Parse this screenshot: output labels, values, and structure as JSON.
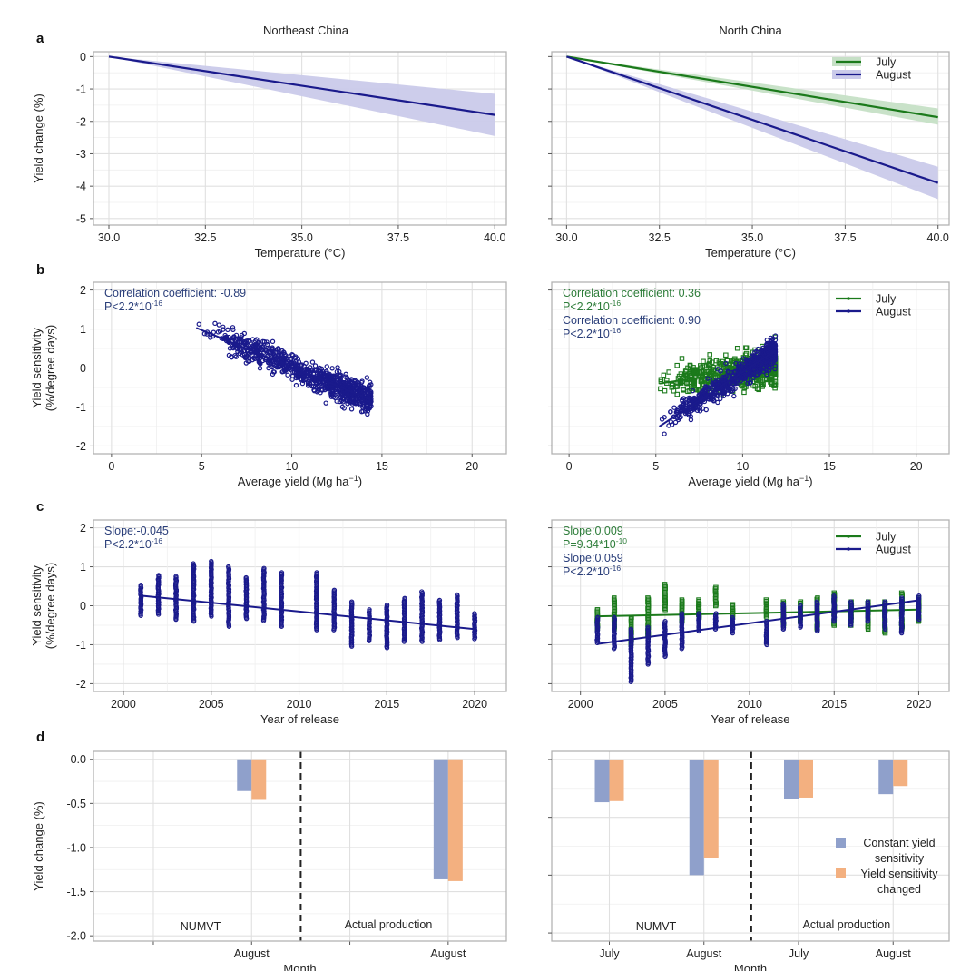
{
  "figure": {
    "panel_letters": [
      "a",
      "b",
      "c",
      "d"
    ],
    "facets": [
      "Northeast China",
      "North China"
    ],
    "colors": {
      "july": "#1b7a1b",
      "august": "#1a1a8c",
      "july_ribbon": "#c6e0c6",
      "august_ribbon": "#cacaea",
      "annot_august": "#2b3f7a",
      "annot_july": "#2e7d3a",
      "bar_constant": "#8fa0cb",
      "bar_changed": "#f3b080"
    }
  },
  "chart_data": [
    {
      "id": "a-northeast",
      "type": "line",
      "panel": "a",
      "facet": "Northeast China",
      "xlabel": "Temperature (°C)",
      "ylabel": "Yield change (%)",
      "xlim": [
        29.6,
        40.3
      ],
      "ylim": [
        -5.2,
        0.15
      ],
      "xticks": [
        30.0,
        32.5,
        35.0,
        37.5,
        40.0
      ],
      "xtick_labels": [
        "30.0",
        "32.5",
        "35.0",
        "37.5",
        "40.0"
      ],
      "yticks": [
        0,
        -1,
        -2,
        -3,
        -4,
        -5
      ],
      "ytick_labels": [
        "0",
        "-1",
        "-2",
        "-3",
        "-4",
        "-5"
      ],
      "series": [
        {
          "name": "August",
          "x": [
            30,
            40
          ],
          "y": [
            0,
            -1.8
          ],
          "lower": [
            0,
            -2.45
          ],
          "upper": [
            0,
            -1.15
          ],
          "color_key": "august"
        }
      ],
      "legend": null
    },
    {
      "id": "a-north",
      "type": "line",
      "panel": "a",
      "facet": "North China",
      "xlabel": "Temperature (°C)",
      "ylabel": "",
      "xlim": [
        29.6,
        40.3
      ],
      "ylim": [
        -5.2,
        0.15
      ],
      "xticks": [
        30.0,
        32.5,
        35.0,
        37.5,
        40.0
      ],
      "xtick_labels": [
        "30.0",
        "32.5",
        "35.0",
        "37.5",
        "40.0"
      ],
      "yticks": [
        0,
        -1,
        -2,
        -3,
        -4,
        -5
      ],
      "ytick_labels": [],
      "series": [
        {
          "name": "July",
          "x": [
            30,
            40
          ],
          "y": [
            0,
            -1.87
          ],
          "lower": [
            0,
            -2.1
          ],
          "upper": [
            0,
            -1.6
          ],
          "color_key": "july"
        },
        {
          "name": "August",
          "x": [
            30,
            40
          ],
          "y": [
            0,
            -3.9
          ],
          "lower": [
            0,
            -4.4
          ],
          "upper": [
            0,
            -3.4
          ],
          "color_key": "august"
        }
      ],
      "legend": {
        "position": "top-right",
        "entries": [
          "July",
          "August"
        ]
      }
    },
    {
      "id": "b-northeast",
      "type": "scatter",
      "panel": "b",
      "facet": "Northeast China",
      "xlabel": "Average yield (Mg ha",
      "xlabel_sup": "−1",
      "xlabel_end": ")",
      "ylabel": "Yield sensitivity",
      "ylabel2": "(%/degree days)",
      "xlim": [
        -1,
        21.9
      ],
      "ylim": [
        -2.2,
        2.2
      ],
      "xticks": [
        0,
        5,
        10,
        15,
        20
      ],
      "xtick_labels": [
        "0",
        "5",
        "10",
        "15",
        "20"
      ],
      "yticks": [
        2,
        1,
        0,
        -1,
        -2
      ],
      "ytick_labels": [
        "2",
        "1",
        "0",
        "-1",
        "-2"
      ],
      "annotations": [
        {
          "text": "Correlation coefficient: -0.89",
          "color_key": "annot_august"
        },
        {
          "text": "P<2.2*10",
          "sup": "-16",
          "color_key": "annot_august"
        }
      ],
      "series": [
        {
          "name": "August",
          "color_key": "august",
          "marker": "circle",
          "fit": {
            "x": [
              4.7,
              14.4
            ],
            "y": [
              1.03,
              -0.82
            ]
          },
          "cloud": {
            "x_range": [
              4.7,
              14.4
            ],
            "n": 900,
            "noise": 0.17,
            "seed": 7
          }
        }
      ],
      "legend": null
    },
    {
      "id": "b-north",
      "type": "scatter",
      "panel": "b",
      "facet": "North China",
      "xlabel": "Average yield (Mg ha",
      "xlabel_sup": "−1",
      "xlabel_end": ")",
      "ylabel": "",
      "xlim": [
        -1,
        21.9
      ],
      "ylim": [
        -2.2,
        2.2
      ],
      "xticks": [
        0,
        5,
        10,
        15,
        20
      ],
      "xtick_labels": [
        "0",
        "5",
        "10",
        "15",
        "20"
      ],
      "yticks": [
        2,
        1,
        0,
        -1,
        -2
      ],
      "ytick_labels": [],
      "annotations": [
        {
          "text": "Correlation coefficient: 0.36",
          "color_key": "annot_july"
        },
        {
          "text": "P<2.2*10",
          "sup": "-16",
          "color_key": "annot_july"
        },
        {
          "text": "Correlation coefficient: 0.90",
          "color_key": "annot_august"
        },
        {
          "text": "P<2.2*10",
          "sup": "-16",
          "color_key": "annot_august"
        }
      ],
      "series": [
        {
          "name": "July",
          "color_key": "july",
          "marker": "square",
          "fit": {
            "x": [
              5.2,
              11.9
            ],
            "y": [
              -0.4,
              0.05
            ]
          },
          "cloud": {
            "x_range": [
              5.2,
              11.9
            ],
            "n": 650,
            "noise": 0.2,
            "seed": 11
          }
        },
        {
          "name": "August",
          "color_key": "august",
          "marker": "circle",
          "fit": {
            "x": [
              5.2,
              11.9
            ],
            "y": [
              -1.5,
              0.45
            ]
          },
          "cloud": {
            "x_range": [
              5.2,
              11.9
            ],
            "n": 650,
            "noise": 0.16,
            "seed": 23
          }
        }
      ],
      "legend": {
        "position": "top-right",
        "entries": [
          "July",
          "August"
        ]
      }
    },
    {
      "id": "c-northeast",
      "type": "scatter",
      "panel": "c",
      "facet": "Northeast China",
      "xlabel": "Year of release",
      "ylabel": "Yield sensitivity",
      "ylabel2": "(%/degree days)",
      "xlim": [
        1998.3,
        2021.8
      ],
      "ylim": [
        -2.2,
        2.2
      ],
      "xticks": [
        2000,
        2005,
        2010,
        2015,
        2020
      ],
      "xtick_labels": [
        "2000",
        "2005",
        "2010",
        "2015",
        "2020"
      ],
      "yticks": [
        2,
        1,
        0,
        -1,
        -2
      ],
      "ytick_labels": [
        "2",
        "1",
        "0",
        "-1",
        "-2"
      ],
      "annotations": [
        {
          "text": "Slope:-0.045",
          "color_key": "annot_august"
        },
        {
          "text": "P<2.2*10",
          "sup": "-16",
          "color_key": "annot_august"
        }
      ],
      "series": [
        {
          "name": "August",
          "color_key": "august",
          "marker": "circle",
          "fit": {
            "x": [
              2001,
              2020
            ],
            "y": [
              0.26,
              -0.6
            ]
          },
          "year_ranges": [
            [
              2001,
              -0.25,
              0.53
            ],
            [
              2002,
              -0.22,
              0.78
            ],
            [
              2003,
              -0.35,
              0.75
            ],
            [
              2004,
              -0.4,
              1.08
            ],
            [
              2005,
              -0.27,
              1.14
            ],
            [
              2006,
              -0.53,
              1.0
            ],
            [
              2007,
              -0.33,
              0.72
            ],
            [
              2008,
              -0.38,
              0.96
            ],
            [
              2009,
              -0.53,
              0.85
            ],
            [
              2011,
              -0.62,
              0.85
            ],
            [
              2012,
              -0.62,
              0.4
            ],
            [
              2013,
              -1.04,
              0.1
            ],
            [
              2014,
              -0.9,
              -0.1
            ],
            [
              2015,
              -1.08,
              0.02
            ],
            [
              2016,
              -0.92,
              0.19
            ],
            [
              2017,
              -0.92,
              0.36
            ],
            [
              2018,
              -0.87,
              0.14
            ],
            [
              2019,
              -0.82,
              0.28
            ],
            [
              2020,
              -0.85,
              -0.2
            ]
          ]
        }
      ],
      "legend": null
    },
    {
      "id": "c-north",
      "type": "scatter",
      "panel": "c",
      "facet": "North China",
      "xlabel": "Year of release",
      "ylabel": "",
      "xlim": [
        1998.3,
        2021.8
      ],
      "ylim": [
        -2.2,
        2.2
      ],
      "xticks": [
        2000,
        2005,
        2010,
        2015,
        2020
      ],
      "xtick_labels": [
        "2000",
        "2005",
        "2010",
        "2015",
        "2020"
      ],
      "yticks": [
        2,
        1,
        0,
        -1,
        -2
      ],
      "ytick_labels": [],
      "annotations": [
        {
          "text": "Slope:0.009",
          "color_key": "annot_july"
        },
        {
          "text": "P=9.34*10",
          "sup": "-10",
          "color_key": "annot_july"
        },
        {
          "text": "Slope:0.059",
          "color_key": "annot_august"
        },
        {
          "text": "P<2.2*10",
          "sup": "-16",
          "color_key": "annot_august"
        }
      ],
      "series": [
        {
          "name": "July",
          "color_key": "july",
          "marker": "square",
          "fit": {
            "x": [
              2001,
              2020
            ],
            "y": [
              -0.27,
              -0.1
            ]
          },
          "year_ranges": [
            [
              2001,
              -0.6,
              -0.1
            ],
            [
              2002,
              -0.6,
              0.2
            ],
            [
              2003,
              -1.0,
              -0.3
            ],
            [
              2004,
              -0.8,
              0.2
            ],
            [
              2005,
              -0.1,
              0.55
            ],
            [
              2006,
              -0.4,
              0.15
            ],
            [
              2007,
              -0.3,
              0.15
            ],
            [
              2008,
              0.0,
              0.47
            ],
            [
              2009,
              -0.3,
              0.03
            ],
            [
              2011,
              -0.3,
              0.15
            ],
            [
              2012,
              -0.5,
              0.1
            ],
            [
              2013,
              -0.4,
              0.1
            ],
            [
              2014,
              -0.6,
              0.2
            ],
            [
              2015,
              -0.5,
              0.33
            ],
            [
              2016,
              -0.5,
              0.1
            ],
            [
              2017,
              -0.6,
              0.1
            ],
            [
              2018,
              -0.7,
              0.1
            ],
            [
              2019,
              -0.6,
              0.33
            ],
            [
              2020,
              -0.4,
              0.2
            ]
          ]
        },
        {
          "name": "August",
          "color_key": "august",
          "marker": "circle",
          "fit": {
            "x": [
              2001,
              2020
            ],
            "y": [
              -0.98,
              0.14
            ]
          },
          "year_ranges": [
            [
              2001,
              -0.95,
              -0.3
            ],
            [
              2002,
              -1.1,
              -0.3
            ],
            [
              2003,
              -1.95,
              -0.6
            ],
            [
              2004,
              -1.5,
              -0.55
            ],
            [
              2005,
              -1.3,
              -0.4
            ],
            [
              2006,
              -1.1,
              -0.2
            ],
            [
              2007,
              -0.65,
              -0.2
            ],
            [
              2008,
              -0.6,
              -0.2
            ],
            [
              2009,
              -0.7,
              -0.3
            ],
            [
              2011,
              -1.0,
              -0.4
            ],
            [
              2012,
              -0.6,
              0.05
            ],
            [
              2013,
              -0.55,
              0.0
            ],
            [
              2014,
              -0.65,
              0.1
            ],
            [
              2015,
              -0.4,
              0.25
            ],
            [
              2016,
              -0.5,
              0.1
            ],
            [
              2017,
              -0.4,
              0.1
            ],
            [
              2018,
              -0.6,
              0.1
            ],
            [
              2019,
              -0.7,
              0.2
            ],
            [
              2020,
              -0.35,
              0.25
            ]
          ]
        }
      ],
      "legend": {
        "position": "top-right",
        "entries": [
          "July",
          "August"
        ]
      }
    },
    {
      "id": "d-northeast",
      "type": "bar",
      "panel": "d",
      "facet": "Northeast China",
      "xlabel": "Month",
      "ylabel": "Yield change (%)",
      "ylim": [
        -2.06,
        0.09
      ],
      "yticks": [
        0.0,
        -0.5,
        -1.0,
        -1.5,
        -2.0
      ],
      "ytick_labels": [
        "0.0",
        "-0.5",
        "-1.0",
        "-1.5",
        "-2.0"
      ],
      "groups": [
        {
          "section": "NUMVT",
          "categories": [
            "",
            "August"
          ]
        },
        {
          "section": "Actual production",
          "categories": [
            "",
            "August"
          ]
        }
      ],
      "series": [
        {
          "name": "Constant yield sensitivity",
          "color_key": "bar_constant",
          "values": [
            null,
            -0.36,
            null,
            -1.36
          ]
        },
        {
          "name": "Yield sensitivity changed",
          "color_key": "bar_changed",
          "values": [
            null,
            -0.46,
            null,
            -1.38
          ]
        }
      ],
      "legend": null
    },
    {
      "id": "d-north",
      "type": "bar",
      "panel": "d",
      "facet": "North China",
      "xlabel": "Month",
      "ylabel": "",
      "ylim": [
        -1.57,
        0.07
      ],
      "yticks": [
        0.0,
        -0.5,
        -1.0,
        -1.5
      ],
      "ytick_labels": [],
      "groups": [
        {
          "section": "NUMVT",
          "categories": [
            "July",
            "August"
          ]
        },
        {
          "section": "Actual production",
          "categories": [
            "July",
            "August"
          ]
        }
      ],
      "series": [
        {
          "name": "Constant yield sensitivity",
          "color_key": "bar_constant",
          "values": [
            -0.37,
            -1.0,
            -0.34,
            -0.3
          ]
        },
        {
          "name": "Yield sensitivity changed",
          "color_key": "bar_changed",
          "values": [
            -0.36,
            -0.85,
            -0.33,
            -0.23
          ]
        }
      ],
      "legend": {
        "position": "bottom-right",
        "entries": [
          "Constant yield sensitivity",
          "Yield sensitivity changed"
        ],
        "entry_lines": [
          [
            "Constant yield",
            "sensitivity"
          ],
          [
            "Yield sensitivity",
            "changed"
          ]
        ]
      }
    }
  ]
}
